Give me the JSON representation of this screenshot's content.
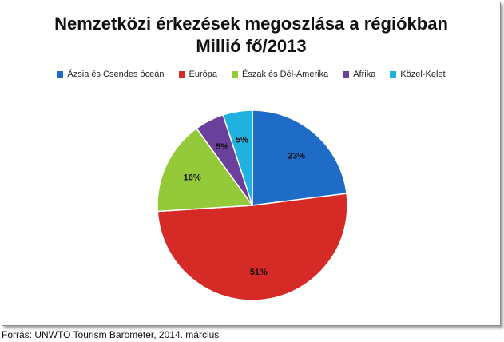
{
  "chart_data": {
    "type": "pie",
    "title": "Nemzetközi érkezések megoszlása a régiókban",
    "subtitle": "Millió fő/2013",
    "legend_placement": "top",
    "slices": [
      {
        "label": "Ázsia és Csendes óceán",
        "value": 23,
        "display": "23%",
        "color": "#1f6bc8"
      },
      {
        "label": "Európa",
        "value": 51,
        "display": "51%",
        "color": "#d62a26"
      },
      {
        "label": "Észak és Dél-Amerika",
        "value": 16,
        "display": "16%",
        "color": "#94c93a"
      },
      {
        "label": "Afrika",
        "value": 5,
        "display": "5%",
        "color": "#6b3f9c"
      },
      {
        "label": "Közel-Kelet",
        "value": 5,
        "display": "5%",
        "color": "#1fb2e0"
      }
    ]
  },
  "source": "Forrás: UNWTO Tourism Barometer, 2014. március"
}
